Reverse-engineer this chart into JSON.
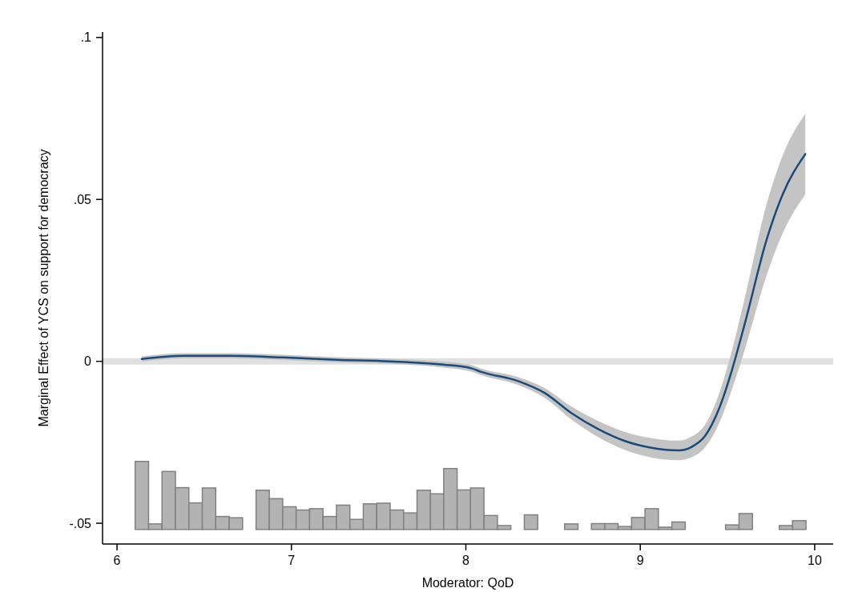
{
  "chart_data": {
    "type": "line",
    "xlabel": "Moderator: QoD",
    "ylabel": "Marginal Effect of YCS on support for democracy",
    "xlim": [
      5.917,
      10.106
    ],
    "ylim": [
      -0.0564,
      0.1017
    ],
    "xticks": [
      6,
      7,
      8,
      9,
      10
    ],
    "yticks": [
      {
        "value": -0.05,
        "label": "-.05"
      },
      {
        "value": 0,
        "label": "0"
      },
      {
        "value": 0.05,
        "label": ".05"
      },
      {
        "value": 0.1,
        "label": ".1"
      }
    ],
    "grid": false,
    "ref_lines": [
      {
        "axis": "y",
        "value": 0,
        "color": "#e0e0e0"
      }
    ],
    "series": [
      {
        "type": "histogram",
        "color": "#b3b3b3",
        "bins": [
          6.104,
          6.181,
          6.258,
          6.335,
          6.412,
          6.489,
          6.566,
          6.643,
          6.72,
          6.797,
          6.873,
          6.95,
          7.027,
          7.104,
          7.181,
          7.258,
          7.335,
          7.412,
          7.489,
          7.566,
          7.643,
          7.72,
          7.797,
          7.873,
          7.95,
          8.027,
          8.104,
          8.181,
          8.258,
          8.335,
          8.412,
          8.489,
          8.566,
          8.643,
          8.72,
          8.797,
          8.873,
          8.95,
          9.027,
          9.104,
          9.181,
          9.258,
          9.335,
          9.412,
          9.489,
          9.566,
          9.643,
          9.72,
          9.797,
          9.873,
          9.95
        ],
        "values": [
          0.021,
          0.0017,
          0.0179,
          0.0129,
          0.0082,
          0.0128,
          0.004,
          0.0036,
          0,
          0.0121,
          0.0095,
          0.007,
          0.006,
          0.0064,
          0.004,
          0.0075,
          0.0031,
          0.0079,
          0.0081,
          0.006,
          0.0051,
          0.0121,
          0.011,
          0.0188,
          0.0122,
          0.0128,
          0.0043,
          0.0012,
          0,
          0.0045,
          0,
          0,
          0.0017,
          0,
          0.0018,
          0.0018,
          0.0009,
          0.0037,
          0.0064,
          0.0007,
          0.0023,
          0,
          0,
          0,
          0.0014,
          0.0049,
          0,
          0,
          0.0012,
          0.0027
        ],
        "base": [
          -0.0519,
          -0.0519,
          -0.0519,
          -0.0519,
          -0.0519,
          -0.0519,
          -0.0519,
          -0.0519,
          null,
          -0.0519,
          -0.0519,
          -0.0519,
          -0.0519,
          -0.0519,
          -0.0519,
          -0.0519,
          -0.0519,
          -0.0519,
          -0.0519,
          -0.0519,
          -0.0519,
          -0.0519,
          -0.0519,
          -0.0519,
          -0.0519,
          -0.0519,
          -0.0519,
          -0.0519,
          null,
          -0.0519,
          null,
          null,
          -0.0519,
          null,
          -0.0519,
          -0.0519,
          -0.0519,
          -0.0519,
          -0.0519,
          -0.0519,
          -0.0519,
          null,
          null,
          null,
          -0.0519,
          -0.0519,
          null,
          null,
          -0.0519,
          -0.0519
        ]
      },
      {
        "color": "#1a4a7a",
        "line_style": "solid",
        "marker": "none",
        "x": [
          6.142,
          6.386,
          6.646,
          6.951,
          7.259,
          7.564,
          7.87,
          8.035,
          8.085,
          8.3,
          8.453,
          8.606,
          8.759,
          8.912,
          9.065,
          9.219,
          9.295,
          9.372,
          9.448,
          9.525,
          9.601,
          9.724,
          9.816,
          9.946
        ],
        "values": [
          0.0007,
          0.0017,
          0.0017,
          0.0012,
          0.0005,
          0.0,
          -0.001,
          -0.0022,
          -0.0032,
          -0.0061,
          -0.0098,
          -0.016,
          -0.0209,
          -0.0246,
          -0.0267,
          -0.0275,
          -0.0264,
          -0.023,
          -0.0151,
          -0.0028,
          0.012,
          0.0375,
          0.0515,
          0.064
        ],
        "lower": [
          -0.0001,
          0.0009,
          0.0009,
          0.0004,
          -0.0003,
          -0.0008,
          -0.0019,
          -0.0032,
          -0.0042,
          -0.0073,
          -0.0113,
          -0.018,
          -0.0234,
          -0.0274,
          -0.0297,
          -0.0305,
          -0.0296,
          -0.0265,
          -0.0196,
          -0.0088,
          0.004,
          0.0265,
          0.0395,
          0.0515
        ],
        "upper": [
          0.0015,
          0.0025,
          0.0025,
          0.002,
          0.0013,
          0.0008,
          -0.0001,
          -0.0012,
          -0.0022,
          -0.0049,
          -0.0083,
          -0.014,
          -0.0184,
          -0.0218,
          -0.0237,
          -0.0245,
          -0.0232,
          -0.0195,
          -0.0106,
          0.0032,
          0.02,
          0.0485,
          0.0635,
          0.0765
        ]
      }
    ]
  }
}
